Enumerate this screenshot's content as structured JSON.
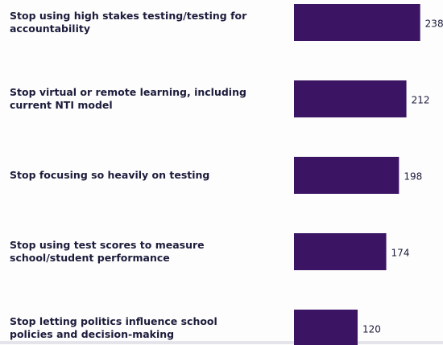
{
  "chart_data": {
    "type": "bar",
    "orientation": "horizontal",
    "categories": [
      "Stop using high stakes testing/testing for accountability",
      "Stop virtual or remote learning, including current NTI model",
      "Stop focusing so heavily on testing",
      "Stop using test scores to measure school/student performance",
      "Stop letting politics influence school policies and decision-making"
    ],
    "values": [
      238,
      212,
      198,
      174,
      120
    ],
    "color": "#3b1464",
    "xlim": [
      0,
      240
    ]
  }
}
